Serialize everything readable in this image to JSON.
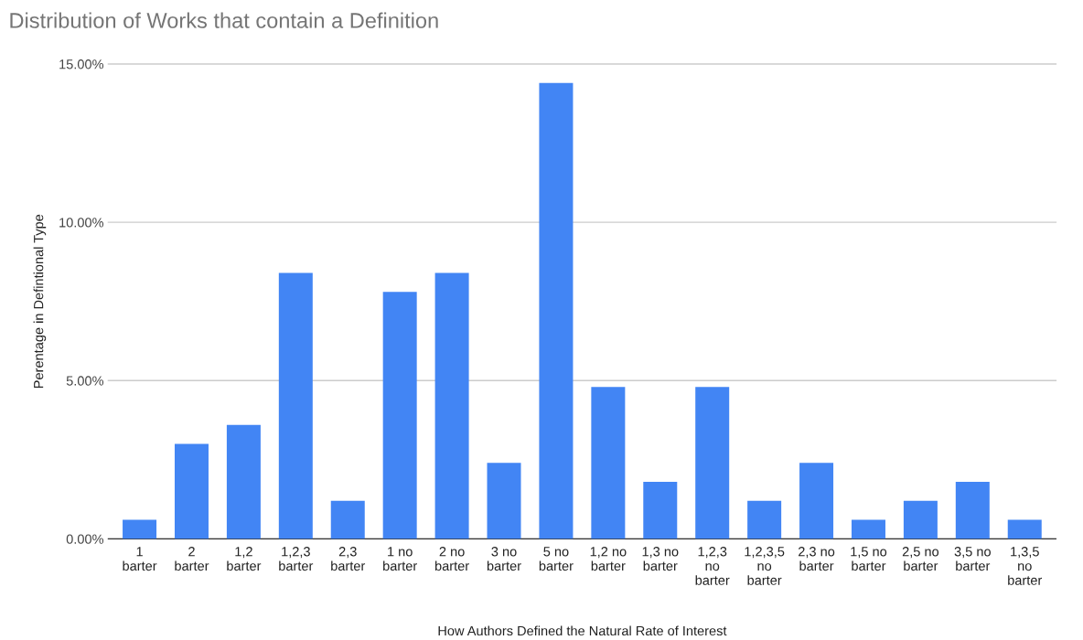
{
  "chart_data": {
    "type": "bar",
    "title": "Distribution of Works that contain a Definition",
    "xlabel": "How Authors Defined the Natural Rate of Interest",
    "ylabel": "Perentage in Defintional Type",
    "categories": [
      "1 barter",
      "2 barter",
      "1,2 barter",
      "1,2,3 barter",
      "2,3 barter",
      "1 no barter",
      "2 no barter",
      "3 no barter",
      "5 no barter",
      "1,2 no barter",
      "1,3 no barter",
      "1,2,3 no barter",
      "1,2,3,5 no barter",
      "2,3 no barter",
      "1,5 no barter",
      "2,5 no barter",
      "3,5 no barter",
      "1,3,5 no barter"
    ],
    "values": [
      0.6,
      3.0,
      3.6,
      8.4,
      1.2,
      7.8,
      8.4,
      2.4,
      14.4,
      4.8,
      1.8,
      4.8,
      1.2,
      2.4,
      0.6,
      1.2,
      1.8,
      0.6
    ],
    "color": "#4285f4",
    "ylim": [
      0,
      15
    ],
    "yticks": [
      {
        "value": 0,
        "label": "0.00%"
      },
      {
        "value": 5,
        "label": "5.00%"
      },
      {
        "value": 10,
        "label": "10.00%"
      },
      {
        "value": 15,
        "label": "15.00%"
      }
    ],
    "grid": "y",
    "legend": false
  }
}
